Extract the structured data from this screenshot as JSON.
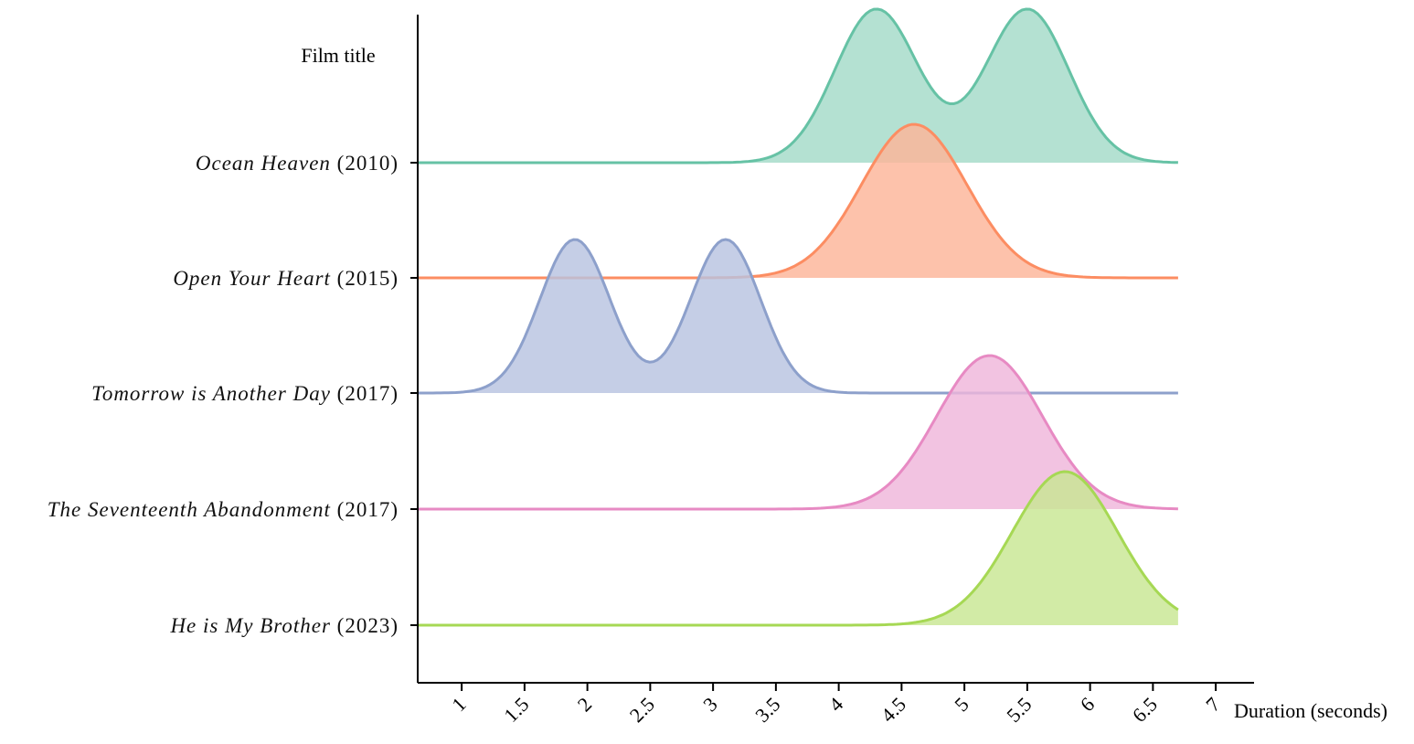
{
  "chart_data": {
    "type": "ridgeline",
    "title": "",
    "xlabel": "Duration (seconds)",
    "ylabel": "Film title",
    "xlim": [
      0.65,
      7.3
    ],
    "x_ticks": [
      "1",
      "1.5",
      "2",
      "2.5",
      "3",
      "3.5",
      "4",
      "4.5",
      "5",
      "5.5",
      "6",
      "6.5",
      "7"
    ],
    "grid": false,
    "legend": "none",
    "series": [
      {
        "name_main": "Ocean Heaven",
        "name_year": "(2010)",
        "color": "#66c2a5",
        "fill": "#a3dbc8",
        "x_range": [
          0.65,
          6.7
        ],
        "peaks": [
          {
            "mu": 4.3,
            "sigma": 0.33,
            "h": 1.0
          },
          {
            "mu": 5.5,
            "sigma": 0.33,
            "h": 1.0
          }
        ]
      },
      {
        "name_main": "Open Your Heart",
        "name_year": "(2015)",
        "color": "#fc8d62",
        "fill": "#fcb598",
        "x_range": [
          0.65,
          6.7
        ],
        "peaks": [
          {
            "mu": 4.6,
            "sigma": 0.42,
            "h": 1.0
          }
        ]
      },
      {
        "name_main": "Tomorrow is Another Day",
        "name_year": "(2017)",
        "color": "#8da0cb",
        "fill": "#b8c3e1",
        "x_range": [
          0.65,
          6.7
        ],
        "peaks": [
          {
            "mu": 1.9,
            "sigma": 0.28,
            "h": 1.0
          },
          {
            "mu": 3.1,
            "sigma": 0.28,
            "h": 1.0
          }
        ]
      },
      {
        "name_main": "The Seventeenth Abandonment",
        "name_year": "(2017)",
        "color": "#e78ac3",
        "fill": "#efb6db",
        "x_range": [
          0.65,
          6.7
        ],
        "peaks": [
          {
            "mu": 5.2,
            "sigma": 0.42,
            "h": 1.0
          }
        ]
      },
      {
        "name_main": "He is My Brother",
        "name_year": "(2023)",
        "color": "#a6d854",
        "fill": "#c8e692",
        "x_range": [
          0.65,
          6.7
        ],
        "peaks": [
          {
            "mu": 5.8,
            "sigma": 0.42,
            "h": 1.0
          }
        ]
      }
    ]
  }
}
